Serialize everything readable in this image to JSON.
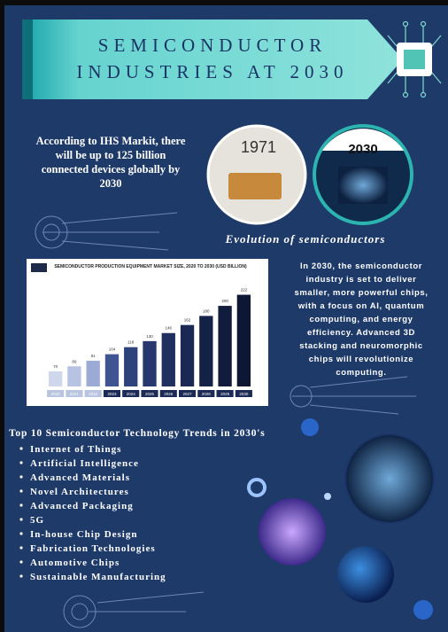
{
  "header": {
    "title_lines": [
      "SEMICONDUCTOR",
      "INDUSTRIES AT 2030"
    ]
  },
  "intro": {
    "lines": [
      "According to IHS Markit, there",
      "will be up to 125 billion",
      "connected devices globally by",
      "2030"
    ]
  },
  "evolution": {
    "images": [
      {
        "label": "1971"
      },
      {
        "label": "2030"
      }
    ],
    "caption": "Evolution of semiconductors"
  },
  "chart_data": {
    "type": "bar",
    "title": "SEMICONDUCTOR PRODUCTION EQUIPMENT MARKET SIZE, 2020 TO 2030 (USD BILLION)",
    "categories": [
      "2020",
      "2021",
      "2022",
      "2023",
      "2024",
      "2025",
      "2026",
      "2027",
      "2028",
      "2029",
      "2030"
    ],
    "values": [
      70,
      80,
      91,
      104,
      118,
      130,
      146,
      162,
      180,
      200,
      222
    ],
    "colors": [
      "#cfd7ec",
      "#b7c3e2",
      "#9cabd6",
      "#3f5592",
      "#2e427c",
      "#26386d",
      "#1f2f60",
      "#1a2853",
      "#152248",
      "#111c3d",
      "#0d1733"
    ],
    "ylim": [
      40,
      230
    ]
  },
  "outlook": {
    "lines": [
      "In 2030, the semiconductor",
      "industry is set to deliver",
      "smaller, more powerful chips,",
      "with a focus on AI, quantum",
      "computing, and energy",
      "efficiency. Advanced 3D",
      "stacking and neuromorphic",
      "chips will revolutionize",
      "computing."
    ]
  },
  "trends": {
    "title": "Top 10 Semiconductor Technology Trends in 2030's",
    "items": [
      "Internet of Things",
      "Artificial Intelligence",
      "Advanced Materials",
      "Novel Architectures",
      "Advanced Packaging",
      "5G",
      "In-house Chip Design",
      "Fabrication Technologies",
      "Automotive Chips",
      "Sustainable Manufacturing"
    ]
  }
}
